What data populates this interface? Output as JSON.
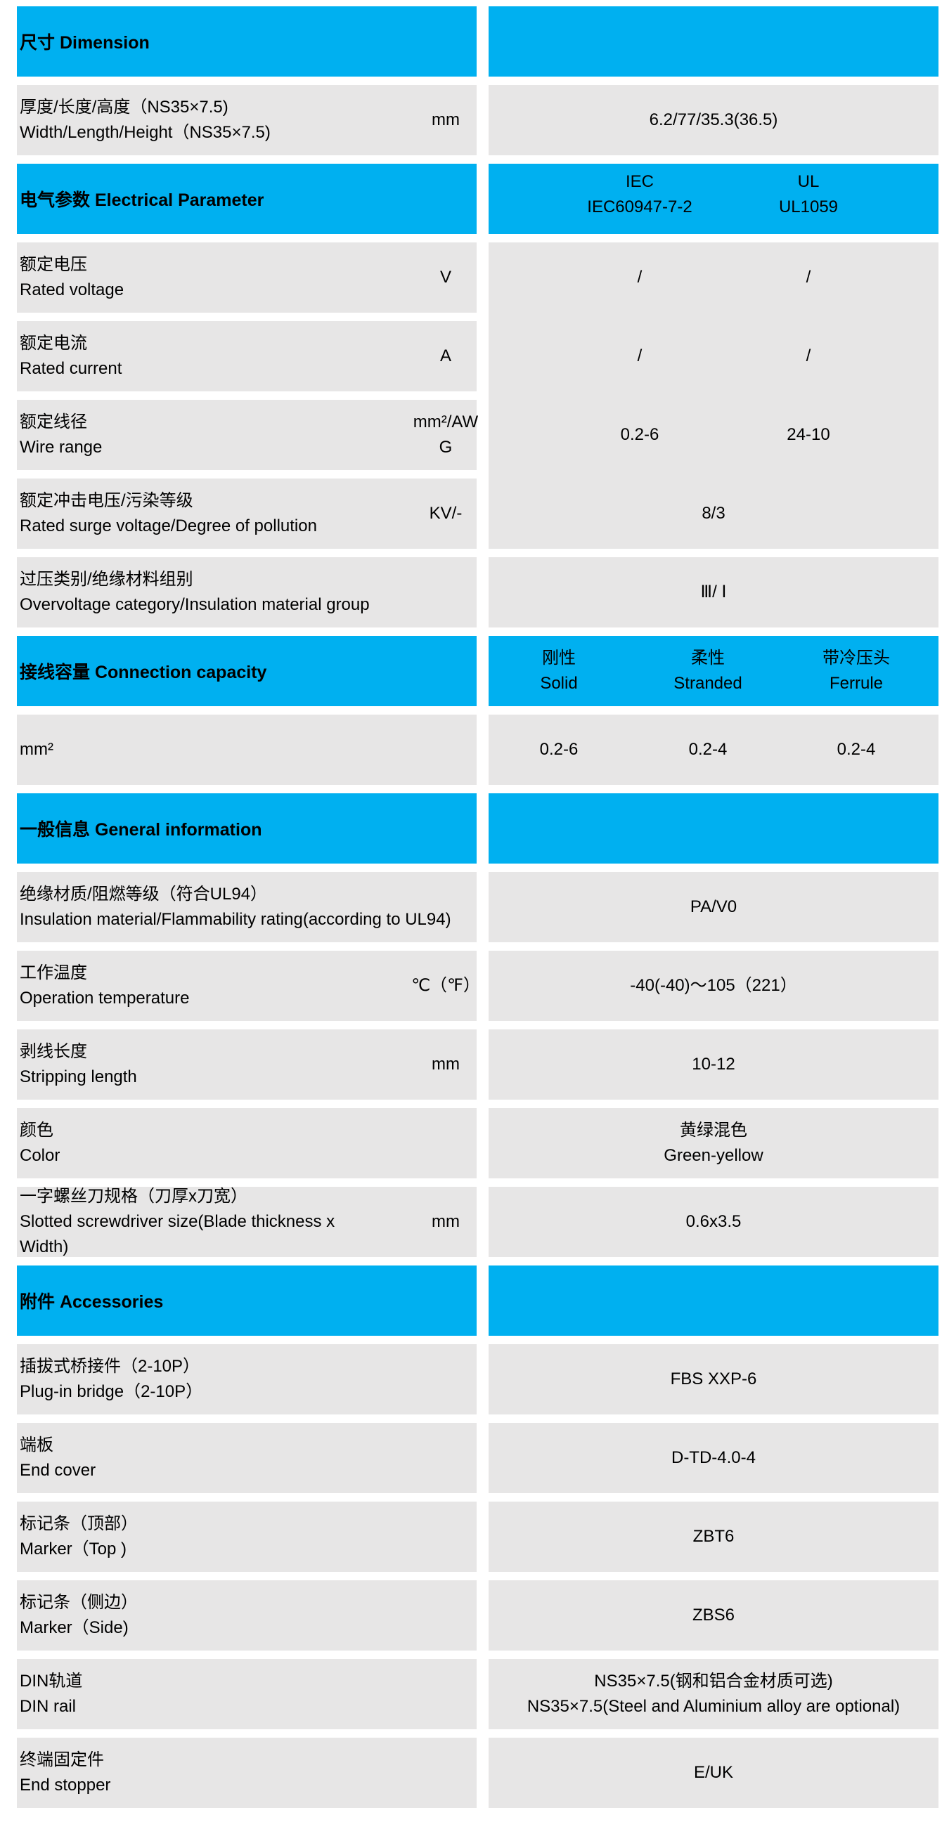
{
  "colors": {
    "header": "#00b0f0",
    "row": "#e7e6e6"
  },
  "rows": [
    {
      "type": "header",
      "label": "尺寸 Dimension",
      "right": []
    },
    {
      "type": "row",
      "cn": "厚度/长度/高度（NS35×7.5)",
      "en": "Width/Length/Height（NS35×7.5)",
      "unit": "mm",
      "right": [
        "6.2/77/35.3(36.5)"
      ]
    },
    {
      "type": "header",
      "label": "电气参数 Electrical Parameter",
      "right": [
        [
          "IEC",
          "IEC60947-7-2"
        ],
        [
          "UL",
          "UL1059"
        ]
      ]
    },
    {
      "type": "row",
      "cn": "额定电压",
      "en": "Rated voltage",
      "unit": "V",
      "merged_right": [
        [
          "/",
          "/"
        ],
        [
          "/",
          "/"
        ],
        [
          "0.2-6",
          "24-10"
        ],
        [
          "8/3"
        ]
      ]
    },
    {
      "type": "row",
      "cn": "额定电流",
      "en": "Rated current",
      "unit": "A",
      "covered": true
    },
    {
      "type": "row",
      "cn": "额定线径",
      "en": "Wire range",
      "unit": "mm²/AWG",
      "covered": true
    },
    {
      "type": "row",
      "cn": "额定冲击电压/污染等级",
      "en": "Rated surge voltage/Degree of pollution",
      "unit": "KV/-",
      "covered": true
    },
    {
      "type": "row",
      "cn": "过压类别/绝缘材料组别",
      "en": "Overvoltage category/Insulation material group",
      "unit": "",
      "right": [
        "Ⅲ/ Ⅰ"
      ]
    },
    {
      "type": "header",
      "label": "接线容量 Connection capacity",
      "right": [
        [
          "刚性",
          "Solid"
        ],
        [
          "柔性",
          "Stranded"
        ],
        [
          "带冷压头",
          "Ferrule"
        ]
      ]
    },
    {
      "type": "row",
      "cn": "",
      "en": "mm²",
      "unit": "",
      "right": [
        "0.2-6",
        "0.2-4",
        "0.2-4"
      ]
    },
    {
      "type": "header",
      "label": "一般信息 General information",
      "right": []
    },
    {
      "type": "row",
      "cn": "绝缘材质/阻燃等级（符合UL94）",
      "en": "Insulation material/Flammability rating(according to UL94)",
      "unit": "",
      "right": [
        "PA/V0"
      ]
    },
    {
      "type": "row",
      "cn": "工作温度",
      "en": "Operation temperature",
      "unit": "℃（℉）",
      "right": [
        "-40(-40)～105（221）"
      ]
    },
    {
      "type": "row",
      "cn": "剥线长度",
      "en": "Stripping length",
      "unit": "mm",
      "right": [
        "10-12"
      ]
    },
    {
      "type": "row",
      "cn": "颜色",
      "en": "Color",
      "unit": "",
      "right_lines": [
        "黄绿混色",
        "Green-yellow"
      ]
    },
    {
      "type": "row",
      "cn": "一字螺丝刀规格（刀厚x刀宽）",
      "en": "Slotted screwdriver size(Blade thickness x Width)",
      "unit": "mm",
      "right": [
        "0.6x3.5"
      ]
    },
    {
      "type": "header",
      "label": "附件 Accessories",
      "right": []
    },
    {
      "type": "row",
      "cn": "插拔式桥接件（2-10P）",
      "en": "Plug-in bridge（2-10P）",
      "unit": "",
      "right": [
        "FBS XXP-6"
      ]
    },
    {
      "type": "row",
      "cn": "端板",
      "en": "End cover",
      "unit": "",
      "right": [
        "D-TD-4.0-4"
      ]
    },
    {
      "type": "row",
      "cn": "标记条（顶部）",
      "en": "Marker（Top )",
      "unit": "",
      "right": [
        "ZBT6"
      ]
    },
    {
      "type": "row",
      "cn": "标记条（侧边）",
      "en": "Marker（Side)",
      "unit": "",
      "right": [
        "ZBS6"
      ]
    },
    {
      "type": "row",
      "cn": "DIN轨道",
      "en": "DIN rail",
      "unit": "",
      "right_lines": [
        "NS35×7.5(钢和铝合金材质可选)",
        "NS35×7.5(Steel and Aluminium alloy are optional)"
      ]
    },
    {
      "type": "row",
      "cn": "终端固定件",
      "en": "End stopper",
      "unit": "",
      "right": [
        "E/UK"
      ]
    }
  ]
}
